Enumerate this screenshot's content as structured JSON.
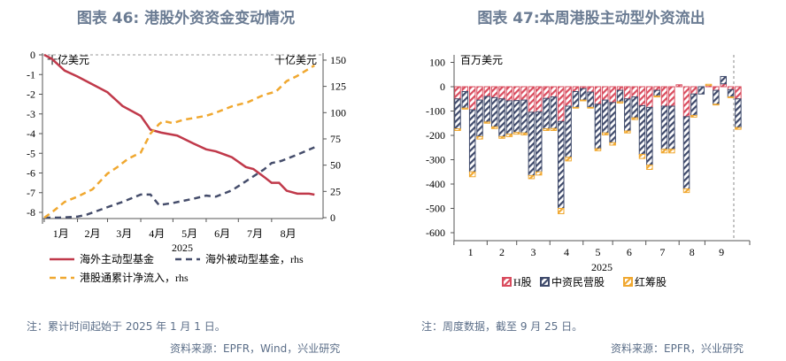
{
  "left": {
    "title": "图表 46: 港股外资资金变动情况",
    "note": "注：累计时间起始于 2025 年 1 月 1 日。",
    "source": "资料来源：EPFR，Wind，兴业研究"
  },
  "right": {
    "title": "图表 47:本周港股主动型外资流出",
    "note": "注：周度数据，截至 9 月 25 日。",
    "source": "资料来源：EPFR，兴业研究"
  },
  "chart_data": [
    {
      "type": "line",
      "xlabel": "2025",
      "unit_left": "十亿美元",
      "unit_right": "十亿美元",
      "x_tick_labels": [
        "1月",
        "2月",
        "3月",
        "4月",
        "5月",
        "6月",
        "7月",
        "8月"
      ],
      "ylim_left": [
        -8.3,
        0
      ],
      "yticks_left": [
        0,
        -1,
        -2,
        -3,
        -4,
        -5,
        -6,
        -7,
        -8
      ],
      "ylim_right": [
        0,
        155
      ],
      "yticks_right": [
        0,
        25,
        50,
        75,
        100,
        125,
        150
      ],
      "colors": {
        "active": "#c0394a",
        "passive": "#454d6b",
        "southbound": "#f0a830"
      },
      "series": [
        {
          "name": "海外主动型基金",
          "axis": "left",
          "key": "active",
          "points": [
            [
              "2025-01-01",
              0
            ],
            [
              "2025-01-08",
              -0.2
            ],
            [
              "2025-01-20",
              -0.8
            ],
            [
              "2025-02-01",
              -1.1
            ],
            [
              "2025-02-15",
              -1.5
            ],
            [
              "2025-03-01",
              -1.9
            ],
            [
              "2025-03-15",
              -2.6
            ],
            [
              "2025-04-01",
              -3.1
            ],
            [
              "2025-04-10",
              -3.8
            ],
            [
              "2025-04-20",
              -3.95
            ],
            [
              "2025-05-05",
              -4.1
            ],
            [
              "2025-05-20",
              -4.5
            ],
            [
              "2025-06-01",
              -4.8
            ],
            [
              "2025-06-10",
              -4.9
            ],
            [
              "2025-06-25",
              -5.2
            ],
            [
              "2025-07-08",
              -5.7
            ],
            [
              "2025-07-15",
              -5.8
            ],
            [
              "2025-07-25",
              -6.2
            ],
            [
              "2025-08-01",
              -6.5
            ],
            [
              "2025-08-08",
              -6.5
            ],
            [
              "2025-08-15",
              -6.9
            ],
            [
              "2025-08-25",
              -7.05
            ],
            [
              "2025-09-05",
              -7.05
            ],
            [
              "2025-09-10",
              -7.1
            ]
          ]
        },
        {
          "name": "海外被动型基金，rhs",
          "axis": "right",
          "key": "passive",
          "points": [
            [
              "2025-01-01",
              0
            ],
            [
              "2025-01-15",
              0
            ],
            [
              "2025-02-01",
              1
            ],
            [
              "2025-02-10",
              3
            ],
            [
              "2025-03-01",
              10
            ],
            [
              "2025-03-15",
              15
            ],
            [
              "2025-04-01",
              22
            ],
            [
              "2025-04-10",
              22
            ],
            [
              "2025-04-18",
              12
            ],
            [
              "2025-05-01",
              14
            ],
            [
              "2025-05-20",
              18
            ],
            [
              "2025-06-01",
              21
            ],
            [
              "2025-06-10",
              20
            ],
            [
              "2025-06-25",
              26
            ],
            [
              "2025-07-10",
              36
            ],
            [
              "2025-07-25",
              46
            ],
            [
              "2025-08-01",
              52
            ],
            [
              "2025-08-10",
              54
            ],
            [
              "2025-08-25",
              60
            ],
            [
              "2025-09-10",
              67
            ]
          ]
        },
        {
          "name": "港股通累计净流入，rhs",
          "axis": "right",
          "key": "southbound",
          "points": [
            [
              "2025-01-01",
              0
            ],
            [
              "2025-01-08",
              5
            ],
            [
              "2025-01-20",
              15
            ],
            [
              "2025-02-01",
              20
            ],
            [
              "2025-02-15",
              27
            ],
            [
              "2025-03-01",
              42
            ],
            [
              "2025-03-10",
              48
            ],
            [
              "2025-03-20",
              56
            ],
            [
              "2025-04-01",
              62
            ],
            [
              "2025-04-10",
              80
            ],
            [
              "2025-04-18",
              89
            ],
            [
              "2025-04-22",
              92
            ],
            [
              "2025-05-01",
              90
            ],
            [
              "2025-05-10",
              93
            ],
            [
              "2025-06-01",
              97
            ],
            [
              "2025-06-10",
              100
            ],
            [
              "2025-06-25",
              106
            ],
            [
              "2025-07-10",
              110
            ],
            [
              "2025-07-25",
              117
            ],
            [
              "2025-08-05",
              120
            ],
            [
              "2025-08-15",
              130
            ],
            [
              "2025-08-25",
              135
            ],
            [
              "2025-09-10",
              145
            ]
          ]
        }
      ]
    },
    {
      "type": "bar",
      "stacked": true,
      "xlabel": "2025",
      "unit": "百万美元",
      "ylim": [
        -620,
        130
      ],
      "yticks": [
        100,
        0,
        -100,
        -200,
        -300,
        -400,
        -500,
        -600
      ],
      "x_tick_labels": [
        "1",
        "2",
        "3",
        "4",
        "5",
        "6",
        "7",
        "8",
        "9"
      ],
      "colors": {
        "H": "#d94c5e",
        "mainland": "#3f4a6b",
        "redchip": "#f0a830"
      },
      "series": [
        {
          "name": "H股",
          "key": "H",
          "values": [
            -50,
            -20,
            -95,
            -55,
            -40,
            -45,
            -50,
            -58,
            -57,
            -55,
            -105,
            -103,
            -48,
            -42,
            -143,
            -80,
            -20,
            -8,
            -22,
            -72,
            -55,
            -65,
            -15,
            -50,
            -42,
            -78,
            -85,
            -15,
            -80,
            -80,
            8,
            -123,
            -30,
            0,
            5,
            -15,
            12,
            -12,
            -50
          ]
        },
        {
          "name": "中资民营股",
          "key": "mainland",
          "values": [
            -123,
            -68,
            -255,
            -150,
            -105,
            -120,
            -155,
            -137,
            -131,
            -135,
            -260,
            -247,
            -125,
            -130,
            -357,
            -210,
            -65,
            -47,
            -63,
            -183,
            -135,
            -165,
            -47,
            -132,
            -86,
            -200,
            -237,
            -23,
            -177,
            -177,
            0,
            -297,
            -88,
            -30,
            0,
            -57,
            30,
            -30,
            -118
          ]
        },
        {
          "name": "红筹股",
          "key": "redchip",
          "values": [
            -7,
            -4,
            -20,
            -10,
            -5,
            -7,
            -7,
            -10,
            -7,
            -8,
            -13,
            -13,
            -7,
            -8,
            -22,
            -15,
            -3,
            -3,
            -3,
            -8,
            -8,
            -10,
            -5,
            -8,
            -7,
            -17,
            -18,
            -4,
            -15,
            -15,
            0,
            -15,
            -7,
            0,
            5,
            -3,
            0,
            -3,
            -7
          ]
        }
      ]
    }
  ]
}
